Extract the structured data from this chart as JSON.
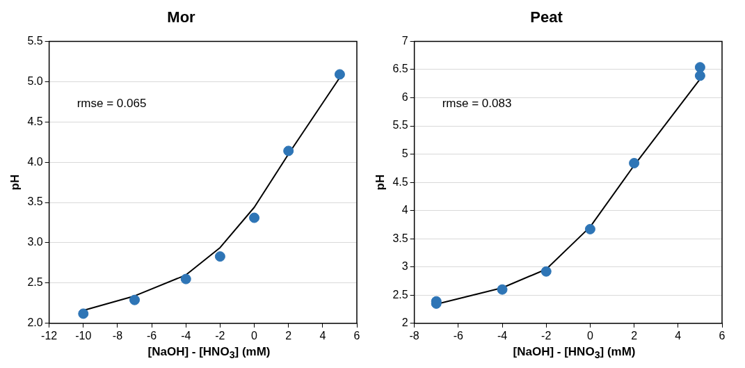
{
  "chart_data": [
    {
      "type": "scatter",
      "title": "Mor",
      "xlabel": "[NaOH] - [HNO$_{3}$] (mM)",
      "ylabel": "pH",
      "annotations": [
        "rmse = 0.065"
      ],
      "xlim": [
        -12,
        6
      ],
      "xticks": [
        -12,
        -10,
        -8,
        -6,
        -4,
        -2,
        0,
        2,
        4,
        6
      ],
      "ylim": [
        2,
        5.5
      ],
      "yticks": [
        {
          "value": 2,
          "label": "2.0"
        },
        2.5,
        {
          "value": 3,
          "label": "3.0"
        },
        3.5,
        {
          "value": 4,
          "label": "4.0"
        },
        4.5,
        {
          "value": 5,
          "label": "5.0"
        },
        5.5
      ],
      "grid": "y",
      "series": [
        {
          "type": "line",
          "color": "#000000",
          "marker": "none",
          "line_style": "solid",
          "x": [
            -10,
            -7,
            -4,
            -2,
            0,
            2,
            5
          ],
          "values": [
            2.16,
            2.34,
            2.6,
            2.94,
            3.44,
            4.1,
            5.05
          ]
        },
        {
          "color": "#2e75b6",
          "marker": "circle",
          "x": [
            -10,
            -7,
            -4,
            -2,
            0,
            2,
            5
          ],
          "values": [
            2.12,
            2.29,
            2.55,
            2.83,
            3.31,
            4.14,
            5.09
          ]
        }
      ]
    },
    {
      "type": "scatter",
      "title": "Peat",
      "xlabel": "[NaOH] - [HNO$_{3}$] (mM)",
      "ylabel": "pH",
      "annotations": [
        "rmse = 0.083"
      ],
      "xlim": [
        -8,
        6
      ],
      "xticks": [
        -8,
        -6,
        -4,
        -2,
        0,
        2,
        4,
        6
      ],
      "ylim": [
        2,
        7
      ],
      "yticks": [
        2,
        2.5,
        3,
        3.5,
        4,
        4.5,
        5,
        5.5,
        6,
        6.5,
        7
      ],
      "grid": "y",
      "series": [
        {
          "type": "line",
          "color": "#000000",
          "marker": "none",
          "line_style": "solid",
          "x": [
            -7,
            -4,
            -2,
            0,
            2,
            5
          ],
          "values": [
            2.34,
            2.63,
            2.96,
            3.71,
            4.8,
            6.33
          ]
        },
        {
          "color": "#2e75b6",
          "marker": "circle",
          "x": [
            -7,
            -7,
            -4,
            -2,
            0,
            2,
            5,
            5
          ],
          "values": [
            2.39,
            2.35,
            2.6,
            2.92,
            3.67,
            4.84,
            6.54,
            6.39
          ]
        }
      ]
    }
  ]
}
